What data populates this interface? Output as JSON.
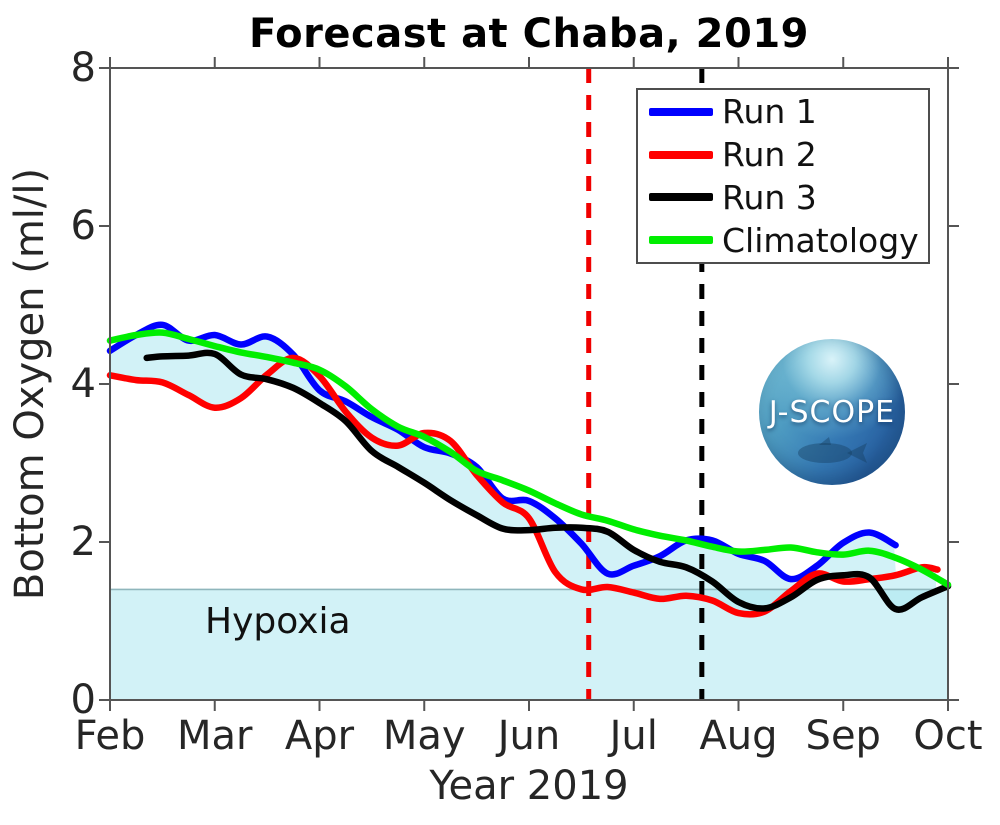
{
  "title": "Forecast at Chaba, 2019",
  "axes": {
    "x_label": "Year 2019",
    "y_label": "Bottom Oxygen (ml/l)"
  },
  "annotations": {
    "hypoxia_label": "Hypoxia"
  },
  "branding": {
    "logo_text": "J-SCOPE"
  },
  "legend": {
    "position": "top-right",
    "items": [
      {
        "label": "Run 1",
        "color": "#0000ff"
      },
      {
        "label": "Run 2",
        "color": "#ff0000"
      },
      {
        "label": "Run 3",
        "color": "#000000"
      },
      {
        "label": "Climatology",
        "color": "#00ee00"
      }
    ]
  },
  "chart_data": {
    "type": "line",
    "title": "Forecast at Chaba, 2019",
    "xlabel": "Year 2019",
    "ylabel": "Bottom Oxygen (ml/l)",
    "x_unit": "month index, 0 = Feb 2019 ... 8 = Oct 2019",
    "xlim": [
      0,
      8
    ],
    "ylim": [
      0,
      8
    ],
    "x_tick_values": [
      0,
      1,
      2,
      3,
      4,
      5,
      6,
      7,
      8
    ],
    "x_tick_labels": [
      "Feb",
      "Mar",
      "Apr",
      "May",
      "Jun",
      "Jul",
      "Aug",
      "Sep",
      "Oct"
    ],
    "y_ticks": [
      0,
      2,
      4,
      6,
      8
    ],
    "grid": false,
    "legend_position": "upper right",
    "frame_color": "#555555",
    "hypoxia": {
      "threshold": 1.4,
      "label": "Hypoxia",
      "band_color": "rgba(168,230,240,0.52)",
      "line_color": "#8fb6bc"
    },
    "envelope": {
      "description": "min-max spread across Run 1-3",
      "fill_color": "rgba(168,230,240,0.52)"
    },
    "vlines": [
      {
        "x": 4.57,
        "color": "#f00000",
        "style": "dashed"
      },
      {
        "x": 5.65,
        "color": "#000000",
        "style": "dashed"
      }
    ],
    "series": [
      {
        "name": "Run 1",
        "color": "#0000ff",
        "is_run": true,
        "x": [
          0,
          0.25,
          0.5,
          0.75,
          1,
          1.25,
          1.5,
          1.75,
          2,
          2.25,
          2.5,
          2.75,
          3,
          3.25,
          3.5,
          3.75,
          4,
          4.25,
          4.5,
          4.75,
          5,
          5.25,
          5.5,
          5.75,
          6,
          6.25,
          6.5,
          6.75,
          7,
          7.25,
          7.5
        ],
        "y": [
          4.42,
          4.62,
          4.75,
          4.55,
          4.62,
          4.5,
          4.6,
          4.37,
          3.92,
          3.78,
          3.58,
          3.42,
          3.2,
          3.12,
          2.95,
          2.55,
          2.52,
          2.3,
          1.98,
          1.6,
          1.7,
          1.82,
          2.02,
          2.02,
          1.85,
          1.76,
          1.53,
          1.7,
          1.99,
          2.12,
          1.96
        ]
      },
      {
        "name": "Run 2",
        "color": "#ff0000",
        "is_run": true,
        "x": [
          0,
          0.25,
          0.5,
          0.75,
          1,
          1.25,
          1.5,
          1.75,
          2,
          2.25,
          2.5,
          2.75,
          3,
          3.25,
          3.5,
          3.75,
          4,
          4.25,
          4.5,
          4.75,
          5,
          5.25,
          5.5,
          5.75,
          6,
          6.25,
          6.5,
          6.75,
          7,
          7.25,
          7.5,
          7.75,
          7.9
        ],
        "y": [
          4.11,
          4.05,
          4.02,
          3.86,
          3.7,
          3.82,
          4.12,
          4.33,
          4.1,
          3.65,
          3.32,
          3.22,
          3.38,
          3.28,
          2.85,
          2.5,
          2.3,
          1.62,
          1.4,
          1.43,
          1.36,
          1.28,
          1.32,
          1.26,
          1.1,
          1.12,
          1.38,
          1.6,
          1.5,
          1.53,
          1.58,
          1.68,
          1.65
        ]
      },
      {
        "name": "Run 3",
        "color": "#000000",
        "is_run": true,
        "x": [
          0.35,
          0.5,
          0.75,
          1,
          1.25,
          1.5,
          1.75,
          2,
          2.25,
          2.5,
          2.75,
          3,
          3.25,
          3.5,
          3.75,
          4,
          4.25,
          4.5,
          4.75,
          5,
          5.25,
          5.5,
          5.75,
          6,
          6.25,
          6.5,
          6.75,
          7,
          7.25,
          7.5,
          7.75,
          8
        ],
        "y": [
          4.33,
          4.35,
          4.36,
          4.38,
          4.12,
          4.06,
          3.95,
          3.76,
          3.53,
          3.15,
          2.95,
          2.75,
          2.53,
          2.34,
          2.17,
          2.15,
          2.18,
          2.18,
          2.13,
          1.9,
          1.75,
          1.68,
          1.5,
          1.24,
          1.16,
          1.3,
          1.52,
          1.58,
          1.55,
          1.15,
          1.3,
          1.44
        ]
      },
      {
        "name": "Climatology",
        "color": "#00ee00",
        "is_run": false,
        "x": [
          0,
          0.25,
          0.5,
          0.75,
          1,
          1.25,
          1.5,
          1.75,
          2,
          2.25,
          2.5,
          2.75,
          3,
          3.25,
          3.5,
          3.75,
          4,
          4.25,
          4.5,
          4.75,
          5,
          5.25,
          5.5,
          5.75,
          6,
          6.25,
          6.5,
          6.75,
          7,
          7.25,
          7.5,
          7.75,
          8
        ],
        "y": [
          4.55,
          4.62,
          4.65,
          4.57,
          4.48,
          4.4,
          4.34,
          4.27,
          4.18,
          3.97,
          3.68,
          3.46,
          3.33,
          3.14,
          2.9,
          2.78,
          2.65,
          2.49,
          2.35,
          2.27,
          2.16,
          2.08,
          2.02,
          1.94,
          1.88,
          1.9,
          1.93,
          1.87,
          1.84,
          1.89,
          1.8,
          1.65,
          1.46
        ]
      }
    ]
  }
}
